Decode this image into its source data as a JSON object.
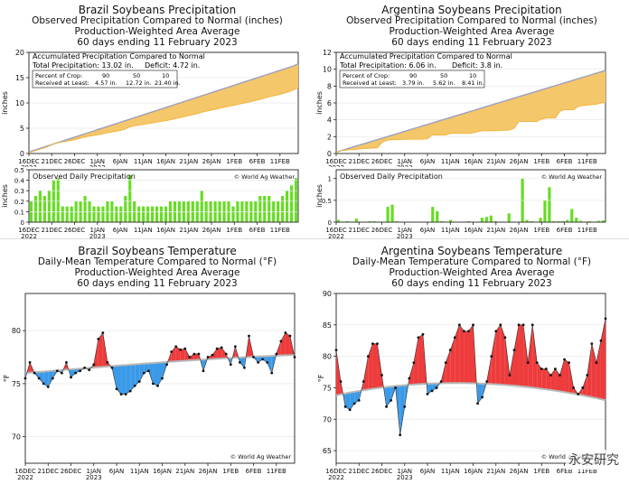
{
  "colors": {
    "accum_fill": "#f5c76b",
    "accum_normal": "#9b9ec0",
    "accum_actual": "#f2b53c",
    "daily_bar": "#66dd22",
    "temp_above": "#ee3b3b",
    "temp_below": "#3a9ae8",
    "normal_curve": "#b7b7b7",
    "grid": "#e8e8e8"
  },
  "watermark_text": "永安研究",
  "panels": {
    "brazil_precip": {
      "title1": "Brazil Soybeans Precipitation",
      "title2": "Observed Precipitation Compared to Normal (inches)",
      "title3": "Production-Weighted Area Average",
      "title4": "60 days ending 11 February 2023",
      "legend": {
        "header": "Accumulated Precipitation Compared to Normal",
        "total_label": "Total Precipitation: 13.02 in.",
        "deficit_label": "Deficit: 4.72 in.",
        "crop_label": "Percent of Crop:",
        "received_label": "Received at Least:",
        "pct": [
          "90",
          "50",
          "10"
        ],
        "amounts": [
          "4.57 in.",
          "12.72 in.",
          "21.40 in."
        ]
      },
      "daily_title": "Observed Daily Precipitation",
      "credit": "© World Ag Weather"
    },
    "argentina_precip": {
      "title1": "Argentina Soybeans Precipitation",
      "title2": "Observed Precipitation Compared to Normal (inches)",
      "title3": "Production-Weighted Area Average",
      "title4": "60 days ending 11 February 2023",
      "legend": {
        "header": "Accumulated Precipitation Compared to Normal",
        "total_label": "Total Precipitation: 6.06 in.",
        "deficit_label": "Deficit: 3.8 in.",
        "crop_label": "Percent of Crop:",
        "received_label": "Received at Least:",
        "pct": [
          "90",
          "50",
          "10"
        ],
        "amounts": [
          "3.79 in.",
          "5.62 in.",
          "8.41 in."
        ]
      },
      "daily_title": "Observed Daily Precipitation",
      "credit": "© World Ag Weather"
    },
    "brazil_temp": {
      "title1": "Brazil Soybeans Temperature",
      "title2": "Daily-Mean Temperature Compared to Normal (°F)",
      "title3": "Production-Weighted Area Average",
      "title4": "60 days ending 11 February 2023",
      "credit": "© World Ag Weather"
    },
    "argentina_temp": {
      "title1": "Argentina Soybeans Temperature",
      "title2": "Daily-Mean Temperature Compared to Normal (°F)",
      "title3": "Production-Weighted Area Average",
      "title4": "60 days ending 11 February 2023",
      "credit": "© World Ag Weather"
    }
  },
  "chart_data": [
    {
      "id": "brazil_accum",
      "type": "area",
      "title": "Brazil Soybeans Precipitation",
      "ylabel": "inches",
      "ylim": [
        0,
        20
      ],
      "yticks": [
        0,
        5,
        10,
        15,
        20
      ],
      "x_tick_labels": [
        "16DEC 2022",
        "21DEC",
        "26DEC",
        "1JAN 2023",
        "6JAN",
        "11JAN",
        "16JAN",
        "21JAN",
        "26JAN",
        "1FEB",
        "6FEB",
        "11FEB"
      ],
      "series": [
        {
          "name": "Normal",
          "values": [
            0.29,
            0.59,
            0.88,
            1.17,
            1.47,
            1.76,
            2.06,
            2.35,
            2.64,
            2.94,
            3.23,
            3.52,
            3.82,
            4.11,
            4.4,
            4.7,
            4.99,
            5.28,
            5.58,
            5.87,
            6.16,
            6.46,
            6.75,
            7.05,
            7.34,
            7.63,
            7.93,
            8.22,
            8.51,
            8.81,
            9.1,
            9.39,
            9.69,
            9.98,
            10.27,
            10.57,
            10.86,
            11.16,
            11.45,
            11.74,
            12.04,
            12.33,
            12.62,
            12.92,
            13.21,
            13.5,
            13.8,
            14.09,
            14.38,
            14.68,
            14.97,
            15.27,
            15.56,
            15.85,
            16.15,
            16.44,
            16.73,
            17.03,
            17.32,
            17.74
          ]
        },
        {
          "name": "Observed",
          "values": [
            0.2,
            0.45,
            0.75,
            1.0,
            1.3,
            1.7,
            2.1,
            2.25,
            2.4,
            2.55,
            2.75,
            2.95,
            3.2,
            3.4,
            3.55,
            3.7,
            3.85,
            4.05,
            4.25,
            4.4,
            4.55,
            4.8,
            5.25,
            5.45,
            5.6,
            5.75,
            5.9,
            6.05,
            6.2,
            6.35,
            6.5,
            6.7,
            6.9,
            7.1,
            7.3,
            7.5,
            7.7,
            7.9,
            8.2,
            8.4,
            8.6,
            8.8,
            9.0,
            9.2,
            9.4,
            9.55,
            9.75,
            9.95,
            10.15,
            10.35,
            10.55,
            10.8,
            11.05,
            11.3,
            11.5,
            11.7,
            11.95,
            12.25,
            12.6,
            13.02
          ]
        }
      ]
    },
    {
      "id": "brazil_daily",
      "type": "bar",
      "title": "Observed Daily Precipitation",
      "ylabel": "inches",
      "ylim": [
        0,
        0.5
      ],
      "yticks": [
        0,
        0.1,
        0.2,
        0.3,
        0.4,
        0.5
      ],
      "x_tick_labels": [
        "16DEC 2022",
        "21DEC",
        "26DEC",
        "1JAN 2023",
        "6JAN",
        "11JAN",
        "16JAN",
        "21JAN",
        "26JAN",
        "1FEB",
        "6FEB",
        "11FEB"
      ],
      "values": [
        0.2,
        0.25,
        0.3,
        0.25,
        0.3,
        0.4,
        0.42,
        0.15,
        0.15,
        0.15,
        0.2,
        0.2,
        0.25,
        0.2,
        0.15,
        0.15,
        0.15,
        0.2,
        0.2,
        0.15,
        0.15,
        0.25,
        0.45,
        0.2,
        0.15,
        0.15,
        0.15,
        0.15,
        0.15,
        0.15,
        0.15,
        0.2,
        0.2,
        0.2,
        0.2,
        0.2,
        0.2,
        0.2,
        0.3,
        0.2,
        0.2,
        0.2,
        0.2,
        0.2,
        0.2,
        0.15,
        0.2,
        0.2,
        0.2,
        0.2,
        0.2,
        0.25,
        0.25,
        0.25,
        0.2,
        0.2,
        0.25,
        0.3,
        0.35,
        0.42
      ]
    },
    {
      "id": "argentina_accum",
      "type": "area",
      "title": "Argentina Soybeans Precipitation",
      "ylabel": "inches",
      "ylim": [
        0,
        12
      ],
      "yticks": [
        0,
        2,
        4,
        6,
        8,
        10,
        12
      ],
      "x_tick_labels": [
        "16DEC 2022",
        "21DEC",
        "26DEC",
        "1JAN 2023",
        "6JAN",
        "11JAN",
        "16JAN",
        "21JAN",
        "26JAN",
        "1FEB",
        "6FEB",
        "11FEB"
      ],
      "series": [
        {
          "name": "Normal",
          "values": [
            0.16,
            0.33,
            0.49,
            0.66,
            0.82,
            0.99,
            1.15,
            1.31,
            1.48,
            1.64,
            1.81,
            1.97,
            2.14,
            2.3,
            2.46,
            2.63,
            2.79,
            2.96,
            3.12,
            3.29,
            3.45,
            3.61,
            3.78,
            3.94,
            4.11,
            4.27,
            4.44,
            4.6,
            4.76,
            4.93,
            5.09,
            5.26,
            5.42,
            5.59,
            5.75,
            5.91,
            6.08,
            6.24,
            6.41,
            6.57,
            6.74,
            6.9,
            7.06,
            7.23,
            7.39,
            7.56,
            7.72,
            7.89,
            8.05,
            8.21,
            8.38,
            8.54,
            8.71,
            8.87,
            9.04,
            9.2,
            9.36,
            9.53,
            9.69,
            9.86
          ]
        },
        {
          "name": "Observed",
          "values": [
            0.1,
            0.35,
            0.4,
            0.45,
            0.45,
            0.55,
            0.6,
            0.6,
            0.65,
            0.65,
            1.3,
            1.55,
            1.65,
            1.65,
            1.65,
            1.7,
            1.7,
            1.7,
            1.7,
            1.7,
            1.75,
            2.2,
            2.2,
            2.2,
            2.2,
            2.4,
            2.4,
            2.4,
            2.4,
            2.4,
            2.45,
            2.6,
            2.7,
            2.7,
            2.7,
            2.7,
            2.75,
            2.75,
            2.8,
            3.0,
            3.8,
            3.8,
            3.8,
            3.8,
            3.8,
            4.1,
            4.2,
            4.2,
            4.2,
            5.0,
            5.2,
            5.2,
            5.2,
            5.6,
            5.7,
            5.75,
            5.8,
            5.85,
            6.0,
            6.06
          ]
        }
      ]
    },
    {
      "id": "argentina_daily",
      "type": "bar",
      "title": "Observed Daily Precipitation",
      "ylabel": "inches",
      "ylim": [
        0,
        1.2
      ],
      "yticks": [
        0,
        0.5,
        1
      ],
      "x_tick_labels": [
        "16DEC 2022",
        "21DEC",
        "26DEC",
        "1JAN 2023",
        "6JAN",
        "11JAN",
        "16JAN",
        "21JAN",
        "26JAN",
        "1FEB",
        "6FEB",
        "11FEB"
      ],
      "values": [
        0.05,
        0.01,
        0.02,
        0.0,
        0.08,
        0.0,
        0.01,
        0.02,
        0.02,
        0.0,
        0.0,
        0.35,
        0.4,
        0.02,
        0.01,
        0.0,
        0.01,
        0.0,
        0.0,
        0.0,
        0.01,
        0.35,
        0.25,
        0.02,
        0.0,
        0.05,
        0.01,
        0.0,
        0.0,
        0.02,
        0.0,
        0.0,
        0.1,
        0.12,
        0.15,
        0.02,
        0.01,
        0.0,
        0.2,
        0.0,
        0.0,
        1.0,
        0.05,
        0.02,
        0.01,
        0.1,
        0.5,
        0.8,
        0.02,
        0.02,
        0.02,
        0.05,
        0.3,
        0.1,
        0.03,
        0.0,
        0.02,
        0.0,
        0.03,
        0.04
      ]
    },
    {
      "id": "brazil_temp",
      "type": "line",
      "title": "Brazil Soybeans Temperature",
      "ylabel": "°F",
      "ylim": [
        67.5,
        83.5
      ],
      "yticks": [
        70,
        75,
        80
      ],
      "x_tick_labels": [
        "16DEC 2022",
        "21DEC",
        "26DEC",
        "1JAN 2023",
        "6JAN",
        "11JAN",
        "16JAN",
        "21JAN",
        "26JAN",
        "1FEB",
        "6FEB",
        "11FEB"
      ],
      "series": [
        {
          "name": "Normal",
          "values": [
            76.0,
            76.04,
            76.07,
            76.11,
            76.14,
            76.18,
            76.21,
            76.25,
            76.28,
            76.32,
            76.35,
            76.38,
            76.42,
            76.45,
            76.49,
            76.52,
            76.55,
            76.59,
            76.62,
            76.65,
            76.69,
            76.72,
            76.75,
            76.79,
            76.82,
            76.85,
            76.89,
            76.92,
            76.95,
            76.98,
            77.01,
            77.04,
            77.07,
            77.1,
            77.13,
            77.16,
            77.19,
            77.21,
            77.24,
            77.27,
            77.3,
            77.32,
            77.35,
            77.37,
            77.4,
            77.42,
            77.45,
            77.47,
            77.49,
            77.51,
            77.54,
            77.56,
            77.58,
            77.6,
            77.62,
            77.64,
            77.66,
            77.68,
            77.69,
            77.71
          ]
        },
        {
          "name": "Observed",
          "values": [
            75.5,
            77.0,
            76.0,
            75.5,
            75.0,
            74.7,
            75.5,
            76.2,
            76.0,
            77.0,
            75.6,
            76.0,
            76.2,
            76.5,
            76.3,
            76.8,
            79.2,
            79.8,
            77.0,
            76.5,
            74.5,
            74.0,
            74.0,
            74.3,
            74.8,
            75.2,
            76.0,
            76.2,
            75.0,
            74.8,
            75.5,
            76.8,
            78.0,
            78.5,
            78.2,
            78.3,
            77.5,
            77.8,
            77.8,
            76.2,
            77.5,
            77.7,
            78.3,
            78.4,
            77.8,
            76.8,
            78.5,
            77.0,
            76.5,
            79.5,
            77.5,
            77.0,
            77.3,
            77.0,
            76.0,
            77.8,
            79.0,
            79.8,
            79.5,
            77.5
          ]
        }
      ]
    },
    {
      "id": "argentina_temp",
      "type": "line",
      "title": "Argentina Soybeans Temperature",
      "ylabel": "°F",
      "ylim": [
        63,
        90
      ],
      "yticks": [
        65,
        70,
        75,
        80,
        85,
        90
      ],
      "x_tick_labels": [
        "16DEC 2022",
        "21DEC",
        "26DEC",
        "1JAN 2023",
        "6JAN",
        "11JAN",
        "16JAN",
        "21JAN",
        "26JAN",
        "1FEB",
        "6FEB",
        "11FEB"
      ],
      "series": [
        {
          "name": "Normal",
          "values": [
            73.8,
            73.96,
            74.1,
            74.24,
            74.37,
            74.5,
            74.62,
            74.73,
            74.84,
            74.94,
            75.03,
            75.12,
            75.2,
            75.28,
            75.35,
            75.41,
            75.47,
            75.52,
            75.57,
            75.61,
            75.65,
            75.68,
            75.7,
            75.72,
            75.74,
            75.75,
            75.75,
            75.75,
            75.74,
            75.73,
            75.71,
            75.69,
            75.66,
            75.63,
            75.59,
            75.55,
            75.5,
            75.45,
            75.39,
            75.33,
            75.26,
            75.19,
            75.11,
            75.03,
            74.94,
            74.85,
            74.75,
            74.65,
            74.54,
            74.43,
            74.31,
            74.19,
            74.06,
            73.93,
            73.79,
            73.65,
            73.5,
            73.35,
            73.19,
            73.03
          ]
        },
        {
          "name": "Observed",
          "values": [
            81.0,
            76.0,
            72.0,
            71.5,
            72.5,
            73.0,
            76.0,
            80.0,
            82.0,
            82.0,
            77.0,
            72.0,
            73.0,
            75.0,
            67.5,
            72.0,
            76.5,
            79.0,
            83.0,
            83.5,
            74.0,
            74.5,
            75.0,
            76.0,
            79.0,
            81.0,
            83.0,
            85.0,
            84.0,
            84.0,
            85.0,
            72.5,
            73.5,
            76.0,
            80.0,
            84.0,
            85.0,
            83.0,
            77.0,
            81.0,
            85.0,
            85.0,
            79.0,
            85.0,
            79.0,
            78.0,
            78.0,
            77.0,
            78.0,
            77.0,
            79.5,
            79.0,
            75.0,
            74.0,
            75.0,
            77.0,
            82.0,
            79.0,
            82.5,
            86.0
          ]
        }
      ]
    }
  ]
}
